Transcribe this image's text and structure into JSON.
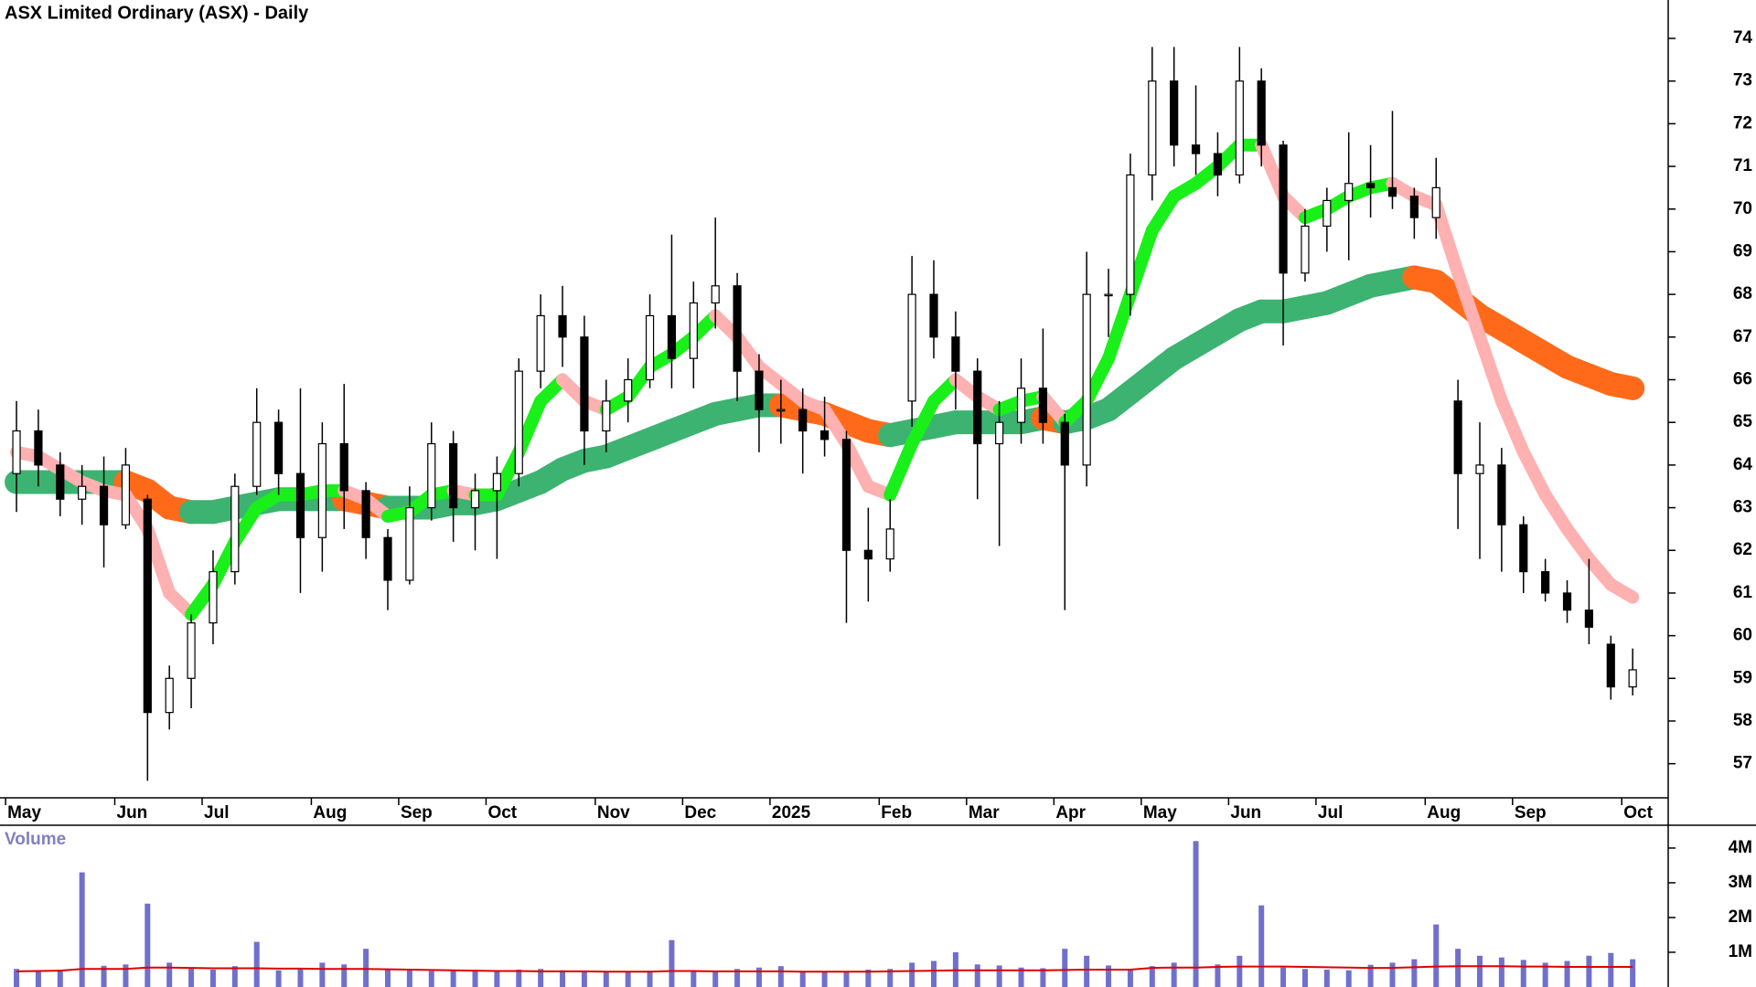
{
  "chart_data": {
    "type": "candlestick",
    "title": "ASX Limited Ordinary (ASX) - Daily",
    "categories": [
      "May",
      null,
      null,
      null,
      null,
      "Jun",
      null,
      null,
      null,
      "Jul",
      null,
      null,
      null,
      null,
      "Aug",
      null,
      null,
      null,
      "Sep",
      null,
      null,
      null,
      "Oct",
      null,
      null,
      null,
      null,
      "Nov",
      null,
      null,
      null,
      "Dec",
      null,
      null,
      null,
      "2025",
      null,
      null,
      null,
      null,
      "Feb",
      null,
      null,
      null,
      "Mar",
      null,
      null,
      null,
      "Apr",
      null,
      null,
      null,
      "May",
      null,
      null,
      null,
      "Jun",
      null,
      null,
      null,
      "Jul",
      null,
      null,
      null,
      null,
      "Aug",
      null,
      null,
      null,
      "Sep",
      null,
      null,
      null,
      null,
      "Oct"
    ],
    "open": [
      63.8,
      64.8,
      64.0,
      63.2,
      63.5,
      62.6,
      63.2,
      58.2,
      59.0,
      60.3,
      61.5,
      63.5,
      65.0,
      63.8,
      62.3,
      64.5,
      63.4,
      62.3,
      61.3,
      63.0,
      64.5,
      63.0,
      63.4,
      63.8,
      66.2,
      67.5,
      67.0,
      64.8,
      65.5,
      66.0,
      67.5,
      66.5,
      67.8,
      68.2,
      66.2,
      65.3,
      65.3,
      64.8,
      64.6,
      62.0,
      61.8,
      65.5,
      68.0,
      67.0,
      66.2,
      64.5,
      65.0,
      65.8,
      65.0,
      64.0,
      68.0,
      68.0,
      70.8,
      73.0,
      71.5,
      71.3,
      70.8,
      73.0,
      71.5,
      68.5,
      69.6,
      70.2,
      70.6,
      70.5,
      70.3,
      69.8,
      65.5,
      63.8,
      64.0,
      62.6,
      61.5,
      61.0,
      60.6,
      59.8,
      58.8
    ],
    "high": [
      65.5,
      65.3,
      64.3,
      64.0,
      64.2,
      64.4,
      63.3,
      59.3,
      60.5,
      62.0,
      63.8,
      65.8,
      65.3,
      65.8,
      65.0,
      65.9,
      63.6,
      62.5,
      63.5,
      65.0,
      64.8,
      63.8,
      64.2,
      66.5,
      68.0,
      68.2,
      67.5,
      66.0,
      66.5,
      68.0,
      69.4,
      68.3,
      69.8,
      68.5,
      66.6,
      66.0,
      65.8,
      65.6,
      64.8,
      63.0,
      63.2,
      68.9,
      68.8,
      67.6,
      66.5,
      65.5,
      66.5,
      67.2,
      65.2,
      69.0,
      68.6,
      71.3,
      73.8,
      73.8,
      72.9,
      71.8,
      73.8,
      73.3,
      71.6,
      70.0,
      70.5,
      71.8,
      71.5,
      72.3,
      70.5,
      71.2,
      66.0,
      65.0,
      64.4,
      62.8,
      61.8,
      61.3,
      61.8,
      60.0,
      59.7
    ],
    "low": [
      62.9,
      63.5,
      62.8,
      62.6,
      61.6,
      62.5,
      56.6,
      57.8,
      58.3,
      59.8,
      61.2,
      63.3,
      63.3,
      61.0,
      61.5,
      62.5,
      61.8,
      60.6,
      61.2,
      62.7,
      62.2,
      62.0,
      61.8,
      63.5,
      65.8,
      66.3,
      64.0,
      64.3,
      65.0,
      65.8,
      65.8,
      65.8,
      67.2,
      65.5,
      64.3,
      64.5,
      63.8,
      64.2,
      60.3,
      60.8,
      61.5,
      64.9,
      66.5,
      65.3,
      63.2,
      62.1,
      64.5,
      64.5,
      60.6,
      63.5,
      67.0,
      67.5,
      70.2,
      71.0,
      70.8,
      70.3,
      70.6,
      71.0,
      66.8,
      68.3,
      69.0,
      68.8,
      69.8,
      70.0,
      69.3,
      69.3,
      62.5,
      61.8,
      61.5,
      61.0,
      60.8,
      60.3,
      59.8,
      58.5,
      58.6
    ],
    "close": [
      64.8,
      64.0,
      63.2,
      63.5,
      62.6,
      64.0,
      58.2,
      59.0,
      60.3,
      61.5,
      63.5,
      65.0,
      63.8,
      62.3,
      64.5,
      63.4,
      62.3,
      61.3,
      63.0,
      64.5,
      63.0,
      63.4,
      63.8,
      66.2,
      67.5,
      67.0,
      64.8,
      65.5,
      66.0,
      67.5,
      66.5,
      67.8,
      68.2,
      66.2,
      65.3,
      65.3,
      64.8,
      64.6,
      62.0,
      61.8,
      62.5,
      68.0,
      67.0,
      66.2,
      64.5,
      65.0,
      65.8,
      65.0,
      64.0,
      68.0,
      68.0,
      70.8,
      73.0,
      71.5,
      71.3,
      70.8,
      73.0,
      71.5,
      68.5,
      69.6,
      70.2,
      70.6,
      70.5,
      70.3,
      69.8,
      70.5,
      63.8,
      64.0,
      62.6,
      61.5,
      61.0,
      60.6,
      60.2,
      58.8,
      59.2
    ],
    "candle_color": "#000000",
    "short_average": {
      "rise_color": "#19f019",
      "fall_color": "#ffb0b0",
      "values": [
        64.3,
        64.2,
        63.9,
        63.6,
        63.4,
        63.3,
        62.5,
        61.0,
        60.5,
        61.2,
        62.2,
        63.0,
        63.3,
        63.3,
        63.4,
        63.4,
        63.2,
        62.8,
        62.9,
        63.3,
        63.4,
        63.3,
        63.3,
        64.3,
        65.5,
        66.0,
        65.5,
        65.3,
        65.6,
        66.3,
        66.6,
        67.0,
        67.5,
        67.0,
        66.3,
        65.9,
        65.5,
        65.3,
        64.5,
        63.5,
        63.3,
        64.5,
        65.5,
        66.0,
        65.6,
        65.3,
        65.5,
        65.6,
        65.0,
        65.5,
        66.5,
        68.0,
        69.5,
        70.3,
        70.6,
        71.0,
        71.5,
        71.5,
        70.3,
        69.8,
        70.0,
        70.3,
        70.5,
        70.6,
        70.3,
        70.1,
        68.5,
        67.0,
        65.5,
        64.3,
        63.3,
        62.5,
        61.8,
        61.2,
        60.9
      ]
    },
    "long_average": {
      "rise_color": "#3cb371",
      "fall_color": "#ff6a1a",
      "values": [
        63.6,
        63.6,
        63.6,
        63.6,
        63.6,
        63.6,
        63.4,
        63.0,
        62.9,
        62.9,
        63.0,
        63.1,
        63.2,
        63.2,
        63.2,
        63.2,
        63.1,
        63.0,
        63.0,
        63.0,
        63.1,
        63.1,
        63.2,
        63.4,
        63.6,
        63.9,
        64.1,
        64.2,
        64.4,
        64.6,
        64.8,
        65.0,
        65.2,
        65.3,
        65.4,
        65.4,
        65.3,
        65.2,
        65.0,
        64.8,
        64.7,
        64.8,
        64.9,
        65.0,
        65.0,
        65.0,
        65.0,
        65.1,
        65.0,
        65.1,
        65.3,
        65.7,
        66.1,
        66.5,
        66.8,
        67.1,
        67.4,
        67.6,
        67.6,
        67.7,
        67.8,
        68.0,
        68.2,
        68.3,
        68.4,
        68.3,
        67.9,
        67.5,
        67.2,
        66.9,
        66.6,
        66.3,
        66.1,
        65.9,
        65.8
      ]
    },
    "ylim": [
      56.2,
      74.9
    ],
    "yticks": [
      57,
      58,
      59,
      60,
      61,
      62,
      63,
      64,
      65,
      66,
      67,
      68,
      69,
      70,
      71,
      72,
      73,
      74
    ],
    "grid": false,
    "volume": {
      "label": "Volume",
      "color": "#7070cc",
      "average_color": "#e00000",
      "values": [
        520000,
        480000,
        500000,
        3300000,
        610000,
        650000,
        2400000,
        700000,
        550000,
        500000,
        600000,
        1300000,
        480000,
        520000,
        700000,
        650000,
        1100000,
        500000,
        520000,
        460000,
        480000,
        450000,
        470000,
        500000,
        520000,
        480000,
        460000,
        440000,
        450000,
        470000,
        1350000,
        480000,
        450000,
        520000,
        560000,
        600000,
        440000,
        460000,
        420000,
        500000,
        520000,
        700000,
        750000,
        1000000,
        650000,
        620000,
        560000,
        540000,
        1100000,
        900000,
        620000,
        480000,
        600000,
        700000,
        4200000,
        650000,
        900000,
        2350000,
        560000,
        520000,
        500000,
        480000,
        640000,
        700000,
        800000,
        1800000,
        1100000,
        900000,
        850000,
        780000,
        700000,
        750000,
        900000,
        980000,
        800000
      ],
      "average": [
        450000,
        460000,
        470000,
        520000,
        520000,
        520000,
        560000,
        560000,
        550000,
        540000,
        540000,
        540000,
        530000,
        530000,
        520000,
        520000,
        520000,
        510000,
        500000,
        490000,
        480000,
        470000,
        460000,
        460000,
        450000,
        450000,
        450000,
        440000,
        440000,
        440000,
        460000,
        460000,
        450000,
        450000,
        450000,
        450000,
        440000,
        440000,
        440000,
        440000,
        450000,
        460000,
        470000,
        480000,
        480000,
        480000,
        480000,
        480000,
        490000,
        500000,
        500000,
        500000,
        550000,
        560000,
        560000,
        580000,
        590000,
        590000,
        590000,
        580000,
        570000,
        560000,
        550000,
        550000,
        570000,
        590000,
        600000,
        600000,
        600000,
        590000,
        590000,
        580000,
        580000,
        580000,
        580000
      ],
      "ylim": [
        0,
        4630000
      ],
      "yticks": [
        {
          "value": 1000000,
          "label": "1M"
        },
        {
          "value": 2000000,
          "label": "2M"
        },
        {
          "value": 3000000,
          "label": "3M"
        },
        {
          "value": 4000000,
          "label": "4M"
        }
      ]
    }
  }
}
